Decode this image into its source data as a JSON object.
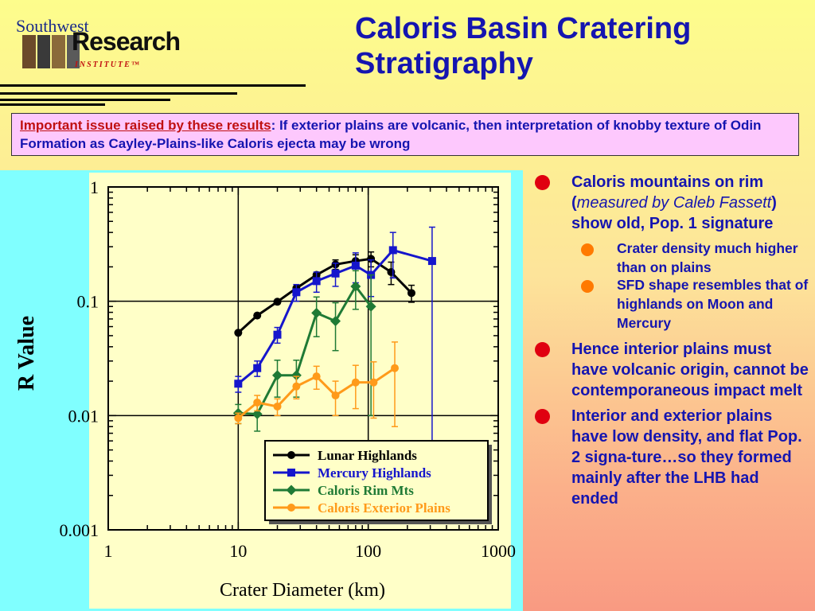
{
  "logo": {
    "top": "Southwest",
    "main": "Research",
    "sub": "INSTITUTE™"
  },
  "slide_title": "Caloris Basin Cratering Stratigraphy",
  "notice": {
    "lead": "Important issue raised by these results",
    "text": ":  If exterior plains are volcanic, then interpretation of knobby texture of Odin Formation as Cayley-Plains-like Caloris ejecta may be wrong"
  },
  "bullets": {
    "b1_pre": "Caloris mountains on rim (",
    "b1_ital": "measured by Caleb Fassett",
    "b1_post": ") show old, Pop. 1 signature",
    "b1_sub1": "Crater density much higher than on plains",
    "b1_sub2": "SFD shape resembles that of highlands on Moon and Mercury",
    "b2": "Hence interior plains must have volcanic origin, cannot be contemporaneous impact melt",
    "b3": "Interior and exterior plains have low density, and flat Pop. 2 signa-ture…so they formed mainly after the LHB had ended"
  },
  "colors": {
    "title": "#1515b0",
    "accent_red": "#e00010",
    "sub_bullet": "#ff7a00",
    "plot_bg": "#ffffc8",
    "panel_bg": "#80ffff"
  },
  "chart_data": {
    "type": "line",
    "xlabel": "Crater Diameter (km)",
    "ylabel": "R Value",
    "xscale": "log",
    "yscale": "log",
    "xlim": [
      1,
      1000
    ],
    "ylim": [
      0.001,
      1
    ],
    "x_ticks": [
      "1",
      "10",
      "100",
      "1000"
    ],
    "y_ticks": [
      "0.001",
      "0.01",
      "0.1",
      "1"
    ],
    "grid": "major",
    "legend_position": "bottom-right",
    "series": [
      {
        "name": "Lunar Highlands",
        "color": "#000000",
        "marker": "circle",
        "x": [
          10,
          14,
          20,
          28,
          40,
          56,
          80,
          105,
          150,
          215
        ],
        "y": [
          0.053,
          0.075,
          0.099,
          0.13,
          0.17,
          0.21,
          0.225,
          0.235,
          0.18,
          0.118
        ],
        "err": [
          0,
          0,
          0,
          0,
          0,
          0.02,
          0.03,
          0.035,
          0.04,
          0.02
        ]
      },
      {
        "name": "Mercury Highlands",
        "color": "#1515cc",
        "marker": "square",
        "x": [
          10,
          14,
          20,
          28,
          40,
          56,
          80,
          105,
          155,
          310
        ],
        "y": [
          0.019,
          0.026,
          0.051,
          0.12,
          0.15,
          0.175,
          0.205,
          0.17,
          0.28,
          0.225
        ],
        "err": [
          0.003,
          0.004,
          0.008,
          0.02,
          0.03,
          0.04,
          0.06,
          0.06,
          0.12,
          0.22
        ]
      },
      {
        "name": "Caloris Rim Mts",
        "color": "#1f7a35",
        "marker": "diamond",
        "x": [
          10,
          14,
          20,
          28,
          40,
          56,
          80,
          105
        ],
        "y": [
          0.0105,
          0.0103,
          0.0225,
          0.0225,
          0.079,
          0.067,
          0.135,
          0.09
        ],
        "err": [
          0.002,
          0.003,
          0.008,
          0.008,
          0.03,
          0.03,
          0.05,
          0.08
        ]
      },
      {
        "name": "Caloris Exterior Plains",
        "color": "#ff9a1a",
        "marker": "circle",
        "x": [
          10,
          14,
          20,
          28,
          40,
          56,
          80,
          110,
          160
        ],
        "y": [
          0.0095,
          0.013,
          0.012,
          0.018,
          0.022,
          0.015,
          0.0195,
          0.0195,
          0.026
        ],
        "err": [
          0.001,
          0.002,
          0.002,
          0.004,
          0.005,
          0.005,
          0.008,
          0.01,
          0.018
        ]
      }
    ]
  }
}
